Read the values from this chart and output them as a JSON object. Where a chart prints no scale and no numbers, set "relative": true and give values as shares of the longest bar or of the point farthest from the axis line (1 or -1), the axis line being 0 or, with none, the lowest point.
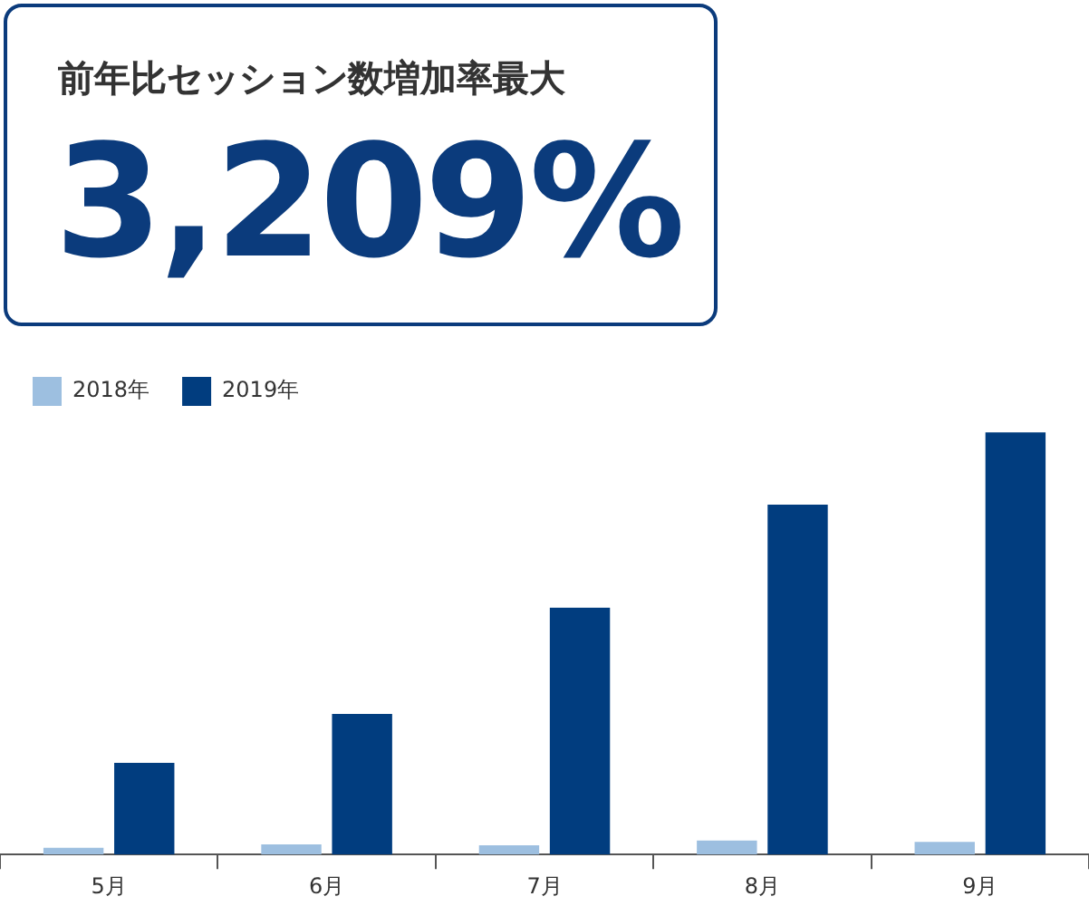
{
  "chart_data": {
    "type": "bar",
    "title": "前年比セッション数増加率最大",
    "annotations": [
      "3,209%"
    ],
    "categories": [
      "5月",
      "6月",
      "7月",
      "8月",
      "9月"
    ],
    "series": [
      {
        "name": "2018年",
        "color": "#9dbfe0",
        "values": [
          0.016,
          0.024,
          0.022,
          0.033,
          0.03
        ]
      },
      {
        "name": "2019年",
        "color": "#013d7f",
        "values": [
          0.217,
          0.333,
          0.585,
          0.829,
          1
        ]
      }
    ],
    "relative": true,
    "grid": false,
    "legend": "top left"
  }
}
